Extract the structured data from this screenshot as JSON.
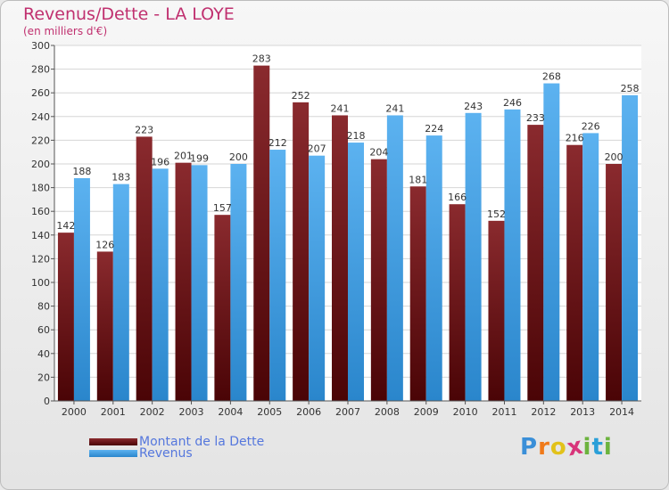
{
  "header": {
    "title": "Revenus/Dette - LA LOYE",
    "subtitle": "(en milliers d'€)"
  },
  "legend": [
    {
      "label": "Montant de la Dette",
      "color": "#6a0e12"
    },
    {
      "label": "Revenus",
      "color": "#3d9ae0"
    }
  ],
  "logo": {
    "letters": [
      "P",
      "r",
      "o",
      "x",
      "i",
      "t",
      "i"
    ],
    "colors": [
      "#3a8fd8",
      "#f07a1a",
      "#e2c21a",
      "#d8347a",
      "#6cb33e",
      "#2a9fd8",
      "#6cb33e"
    ]
  },
  "chart_data": {
    "type": "bar",
    "title": "Revenus/Dette - LA LOYE",
    "subtitle": "(en milliers d'€)",
    "categories": [
      "2000",
      "2001",
      "2002",
      "2003",
      "2004",
      "2005",
      "2006",
      "2007",
      "2008",
      "2009",
      "2010",
      "2011",
      "2012",
      "2013",
      "2014"
    ],
    "series": [
      {
        "name": "Montant de la Dette",
        "color": "#7a1418",
        "values": [
          142,
          126,
          223,
          201,
          157,
          283,
          252,
          241,
          204,
          181,
          166,
          152,
          233,
          216,
          200
        ]
      },
      {
        "name": "Revenus",
        "color": "#4ea8ec",
        "values": [
          188,
          183,
          196,
          199,
          200,
          212,
          207,
          218,
          241,
          224,
          243,
          246,
          268,
          226,
          258
        ]
      }
    ],
    "ylim": [
      0,
      300
    ],
    "yticks": [
      0,
      20,
      40,
      60,
      80,
      100,
      120,
      140,
      160,
      180,
      200,
      220,
      240,
      260,
      280,
      300
    ],
    "grid": true,
    "legend_position": "bottom-left"
  }
}
